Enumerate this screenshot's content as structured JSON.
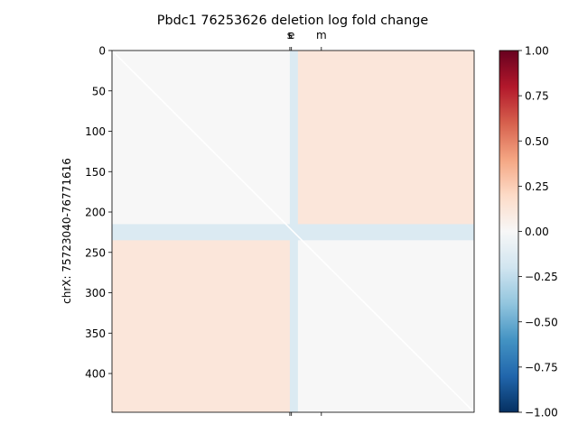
{
  "chart_data": {
    "type": "heatmap",
    "title": "Pbdc1 76253626 deletion log fold change",
    "xlabel": "",
    "ylabel": "chrX: 75723040-76771616",
    "matrix_size": 448,
    "xlim": [
      0,
      448
    ],
    "ylim": [
      448,
      0
    ],
    "y_ticks": [
      0,
      50,
      100,
      150,
      200,
      250,
      300,
      350,
      400
    ],
    "y_tick_labels": [
      "0",
      "50",
      "100",
      "150",
      "200",
      "250",
      "300",
      "350",
      "400"
    ],
    "top_markers": [
      {
        "label": "s",
        "position": 220
      },
      {
        "label": "e",
        "position": 222
      },
      {
        "label": "m",
        "position": 259
      }
    ],
    "deletion_index": 224,
    "diagonal_value": null,
    "grid": false,
    "colorbar": {
      "colormap": "RdBu_r",
      "range": [
        -1.0,
        1.0
      ],
      "ticks": [
        1.0,
        0.75,
        0.5,
        0.25,
        0.0,
        -0.25,
        -0.5,
        -0.75,
        -1.0
      ],
      "tick_labels": [
        "1.00",
        "0.75",
        "0.50",
        "0.25",
        "0.00",
        "−0.25",
        "−0.50",
        "−0.75",
        "−1.00"
      ],
      "placement": "right"
    },
    "regions": [
      {
        "rows": [
          0,
          224
        ],
        "cols": [
          224,
          448
        ],
        "value": 0.12
      },
      {
        "rows": [
          224,
          448
        ],
        "cols": [
          0,
          224
        ],
        "value": 0.12
      },
      {
        "rows": [
          0,
          224
        ],
        "cols": [
          0,
          224
        ],
        "value": 0.0
      },
      {
        "rows": [
          224,
          448
        ],
        "cols": [
          224,
          448
        ],
        "value": 0.0
      },
      {
        "rows": [
          0,
          448
        ],
        "cols": [
          220,
          230
        ],
        "value": -0.15
      },
      {
        "rows": [
          215,
          235
        ],
        "cols": [
          0,
          448
        ],
        "value": -0.15
      }
    ],
    "colors": {
      "neutral": "#f7f7f7",
      "positive_max": "#67001f",
      "negative_max": "#053061"
    }
  }
}
